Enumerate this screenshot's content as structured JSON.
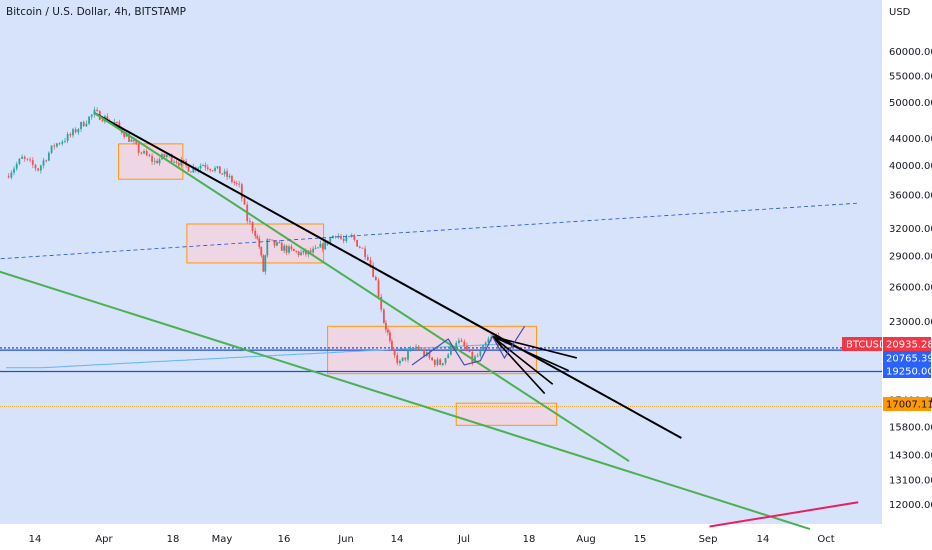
{
  "header": {
    "title": "Bitcoin / U.S. Dollar, 4h, BITSTAMP",
    "currency": "USD"
  },
  "colors": {
    "background": "#d6e3fb",
    "up_candle": "#26a69a",
    "down_candle": "#ef5350",
    "trendline_black": "#000000",
    "trendline_green": "#4caf50",
    "trendline_red": "#e91e63",
    "box_fill": "#f3d4e0",
    "box_stroke": "#ff9800",
    "h_line_blue": "#1e4fd8",
    "ma_line": "#64b5f6",
    "tag_red": "#f23645",
    "tag_blue": "#2962ff",
    "tag_orange": "#ff9800"
  },
  "chart_data": {
    "type": "candlestick",
    "symbol": "BTCUSD",
    "timeframe": "4h",
    "y_scale": "log",
    "ylim": [
      11200,
      72000
    ],
    "x_ticks": [
      "14",
      "Apr",
      "18",
      "May",
      "16",
      "Jun",
      "14",
      "Jul",
      "18",
      "Aug",
      "15",
      "Sep",
      "14",
      "Oct"
    ],
    "y_ticks": [
      "60000.00",
      "55000.00",
      "50000.00",
      "44000.00",
      "40000.00",
      "36000.00",
      "32000.00",
      "29000.00",
      "26000.00",
      "23000.00",
      "17400.00",
      "15800.00",
      "14300.00",
      "13100.00",
      "12000.00"
    ],
    "price_path": [
      [
        0,
        38500
      ],
      [
        4,
        41000
      ],
      [
        8,
        39500
      ],
      [
        12,
        43000
      ],
      [
        16,
        44500
      ],
      [
        20,
        47000
      ],
      [
        22,
        48200
      ],
      [
        24,
        47500
      ],
      [
        27,
        46500
      ],
      [
        30,
        44500
      ],
      [
        33,
        42200
      ],
      [
        37,
        40500
      ],
      [
        40,
        41500
      ],
      [
        43,
        40500
      ],
      [
        46,
        39500
      ],
      [
        49,
        40200
      ],
      [
        52,
        39500
      ],
      [
        55,
        38500
      ],
      [
        58,
        37000
      ],
      [
        60,
        33000
      ],
      [
        62,
        31500
      ],
      [
        63,
        30000
      ],
      [
        64,
        27500
      ],
      [
        65,
        30500
      ],
      [
        68,
        30000
      ],
      [
        71,
        29500
      ],
      [
        74,
        29200
      ],
      [
        77,
        29500
      ],
      [
        80,
        30500
      ],
      [
        82,
        31500
      ],
      [
        84,
        30500
      ],
      [
        86,
        31000
      ],
      [
        88,
        30000
      ],
      [
        90,
        29000
      ],
      [
        92,
        26500
      ],
      [
        94,
        23000
      ],
      [
        95,
        22000
      ],
      [
        96,
        20500
      ],
      [
        98,
        19800
      ],
      [
        100,
        20500
      ],
      [
        102,
        21000
      ],
      [
        104,
        20500
      ],
      [
        106,
        20000
      ],
      [
        108,
        19800
      ],
      [
        110,
        20500
      ],
      [
        112,
        21500
      ],
      [
        114,
        21000
      ],
      [
        116,
        20000
      ],
      [
        118,
        20500
      ],
      [
        120,
        21500
      ],
      [
        122,
        21800
      ],
      [
        123,
        21000
      ]
    ],
    "price_tags": [
      {
        "label": "BTCUSD",
        "value": "20935.28",
        "color": "#f23645"
      },
      {
        "value": "20765.39",
        "color": "#2962ff"
      },
      {
        "value": "19250.00",
        "color": "#2962ff"
      },
      {
        "value": "17007.11",
        "color": "#ff9800"
      }
    ],
    "horizontal_lines": [
      20935.28,
      20765.39,
      19250,
      17007.11
    ],
    "boxes": [
      {
        "from": 28,
        "to": 44,
        "low": 38100,
        "high": 43200
      },
      {
        "from": 45,
        "to": 79,
        "low": 28300,
        "high": 32500
      },
      {
        "from": 80,
        "to": 132,
        "low": 19100,
        "high": 22600
      },
      {
        "from": 112,
        "to": 137,
        "low": 15900,
        "high": 17200
      }
    ],
    "trendlines": [
      {
        "color": "black",
        "points": [
          [
            22,
            48200
          ],
          [
            168,
            15200
          ]
        ]
      },
      {
        "color": "green",
        "points": [
          [
            22,
            48200
          ],
          [
            155,
            14000
          ]
        ]
      },
      {
        "color": "green",
        "points": [
          [
            -10,
            28500
          ],
          [
            200,
            11000
          ]
        ]
      },
      {
        "color": "red",
        "points": [
          [
            175,
            11100
          ],
          [
            212,
            12100
          ]
        ]
      },
      {
        "color": "dashed-blue",
        "points": [
          [
            -10,
            28500
          ],
          [
            212,
            35000
          ]
        ]
      }
    ]
  }
}
